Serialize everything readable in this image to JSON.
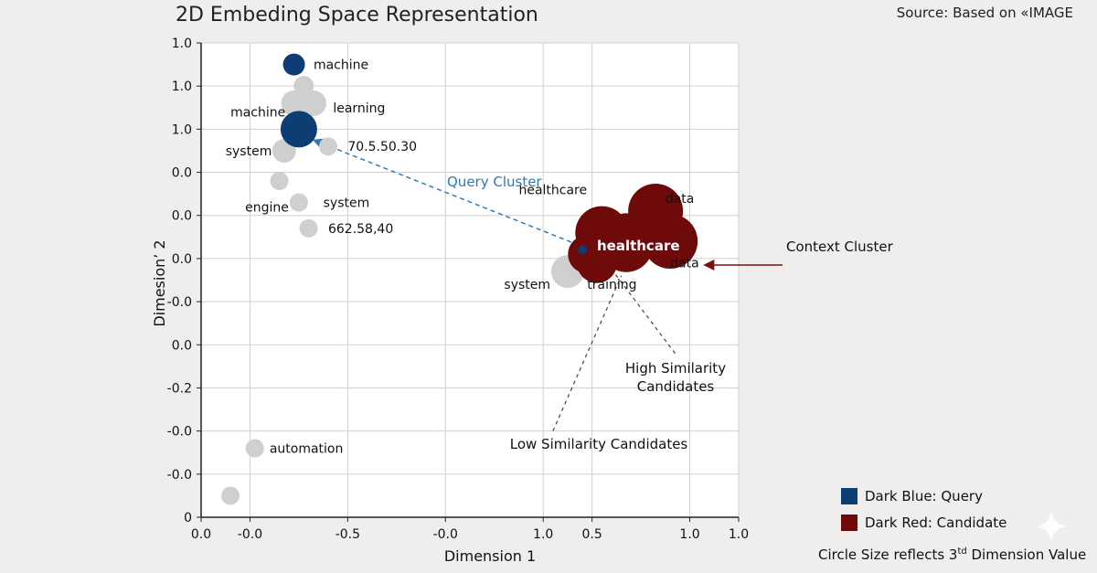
{
  "header": {
    "title": "2D Embeding Space Representation",
    "source": "Source: Based on «IMAGE"
  },
  "legend": {
    "query_label": "Dark Blue: Query",
    "candidate_label": "Dark Red: Candidate",
    "footnote_pre": "Circle Size reflects 3",
    "footnote_sup": "td",
    "footnote_post": " Dimension Value"
  },
  "colors": {
    "query": "#0d3d73",
    "candidate": "#6e0a0a",
    "neutral": "#cfcfcf",
    "query_arrow": "#2b7bb9",
    "context_arrow": "#7a1010",
    "plot_bg": "#ffffff",
    "grid": "#d0d0d0"
  },
  "chart_data": {
    "type": "scatter",
    "title": "2D Embeding Space Representation",
    "xlabel": "Dimension 1",
    "ylabel": "Dimesion’ 2",
    "xlim": [
      0,
      11
    ],
    "ylim": [
      0,
      11
    ],
    "grid": true,
    "x_tick_labels": [
      "0.0",
      "-0.0",
      "-0.5",
      "-0.0",
      "1.0",
      "0.5",
      "1.0",
      "1.0"
    ],
    "x_tick_positions": [
      0,
      1,
      3,
      5,
      7,
      8,
      10,
      11
    ],
    "y_tick_labels": [
      "1.0",
      "1.0",
      "1.0",
      "0.0",
      "0.0",
      "0.0",
      "-0.0",
      "0.0",
      "-0.2",
      "-0.0",
      "-0.0",
      "0"
    ],
    "y_tick_positions": [
      11,
      10,
      9,
      8,
      7,
      6,
      5,
      4,
      3,
      2,
      1,
      0
    ],
    "points": [
      {
        "x": 1.9,
        "y": 10.5,
        "size": 1.2,
        "group": "query"
      },
      {
        "x": 2.1,
        "y": 10.0,
        "size": 1.1,
        "group": "neutral"
      },
      {
        "x": 1.9,
        "y": 9.6,
        "size": 1.4,
        "group": "neutral"
      },
      {
        "x": 2.3,
        "y": 9.6,
        "size": 1.4,
        "group": "neutral"
      },
      {
        "x": 2.0,
        "y": 9.0,
        "size": 2.0,
        "group": "query"
      },
      {
        "x": 2.6,
        "y": 8.6,
        "size": 1.0,
        "group": "neutral"
      },
      {
        "x": 1.7,
        "y": 8.5,
        "size": 1.3,
        "group": "neutral"
      },
      {
        "x": 1.6,
        "y": 7.8,
        "size": 1.0,
        "group": "neutral"
      },
      {
        "x": 2.0,
        "y": 7.3,
        "size": 1.0,
        "group": "neutral"
      },
      {
        "x": 2.2,
        "y": 6.7,
        "size": 1.0,
        "group": "neutral"
      },
      {
        "x": 7.5,
        "y": 5.7,
        "size": 1.8,
        "group": "neutral"
      },
      {
        "x": 7.9,
        "y": 5.7,
        "size": 0.45,
        "group": "neutral"
      },
      {
        "x": 9.3,
        "y": 7.1,
        "size": 3.0,
        "group": "candidate"
      },
      {
        "x": 9.6,
        "y": 6.4,
        "size": 3.0,
        "group": "candidate"
      },
      {
        "x": 8.2,
        "y": 6.6,
        "size": 2.9,
        "group": "candidate"
      },
      {
        "x": 8.7,
        "y": 6.3,
        "size": 2.9,
        "group": "candidate"
      },
      {
        "x": 8.7,
        "y": 6.5,
        "size": 2.6,
        "group": "candidate"
      },
      {
        "x": 7.9,
        "y": 6.1,
        "size": 2.1,
        "group": "candidate"
      },
      {
        "x": 8.1,
        "y": 5.9,
        "size": 2.2,
        "group": "candidate"
      },
      {
        "x": 7.8,
        "y": 6.2,
        "size": 0.5,
        "group": "query"
      },
      {
        "x": 1.1,
        "y": 1.6,
        "size": 1.0,
        "group": "neutral"
      },
      {
        "x": 0.6,
        "y": 0.5,
        "size": 1.0,
        "group": "neutral"
      }
    ],
    "point_labels": [
      {
        "text": "machine",
        "x": 2.3,
        "y": 10.5
      },
      {
        "text": "machine",
        "x": 0.6,
        "y": 9.4
      },
      {
        "text": "learning",
        "x": 2.7,
        "y": 9.5
      },
      {
        "text": "system",
        "x": 0.5,
        "y": 8.5
      },
      {
        "text": "70.5.50.30",
        "x": 3.0,
        "y": 8.6
      },
      {
        "text": "engine",
        "x": 0.9,
        "y": 7.2
      },
      {
        "text": "system",
        "x": 2.5,
        "y": 7.3
      },
      {
        "text": "662.58,40",
        "x": 2.6,
        "y": 6.7
      },
      {
        "text": "healthcare",
        "x": 6.5,
        "y": 7.6
      },
      {
        "text": "data",
        "x": 9.5,
        "y": 7.4
      },
      {
        "text": "data",
        "x": 9.6,
        "y": 5.9
      },
      {
        "text": "system",
        "x": 6.2,
        "y": 5.4
      },
      {
        "text": "training",
        "x": 7.9,
        "y": 5.4
      },
      {
        "text": "automation",
        "x": 1.4,
        "y": 1.6
      }
    ],
    "highlight_label": {
      "text": "healthcare",
      "x": 8.1,
      "y": 6.3
    },
    "annotations": {
      "query_cluster": "Query Cluster",
      "context_cluster": "Context Cluster",
      "high_similarity_1": "High Similarity",
      "high_similarity_2": "Candidates",
      "low_similarity": "Low Similarity Candidates"
    }
  }
}
